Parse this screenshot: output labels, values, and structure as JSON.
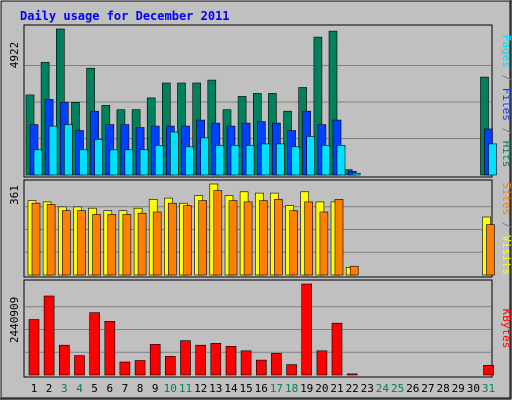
{
  "chart_data": {
    "type": "bar",
    "title": "Daily usage for December 2011",
    "colors": {
      "hits": "#00805c",
      "files": "#0040ff",
      "pages": "#00e0ff",
      "visits": "#ffff00",
      "sites": "#ff8000",
      "kbytes": "#ff0000",
      "title": "#0000ff",
      "background": "#c0c0c0",
      "frame": "#808080",
      "weekend_label": "#00805c",
      "day_label": "#000000"
    },
    "categories": [
      "1",
      "2",
      "3",
      "4",
      "5",
      "6",
      "7",
      "8",
      "9",
      "10",
      "11",
      "12",
      "13",
      "14",
      "15",
      "16",
      "17",
      "18",
      "19",
      "20",
      "21",
      "22",
      "23",
      "24",
      "25",
      "26",
      "27",
      "28",
      "29",
      "30",
      "31"
    ],
    "weekend_days": [
      "3",
      "4",
      "10",
      "11",
      "17",
      "18",
      "24",
      "25",
      "31"
    ],
    "panels": [
      {
        "id": "hits-files-pages",
        "max_label": "4922",
        "ylim": [
          0,
          4922
        ],
        "legend": [
          {
            "text": "Pages",
            "color_key": "pages"
          },
          {
            "text": " / ",
            "color_key": "frame"
          },
          {
            "text": "Files",
            "color_key": "files"
          },
          {
            "text": " / ",
            "color_key": "frame"
          },
          {
            "text": "Hits",
            "color_key": "hits"
          }
        ],
        "series": [
          {
            "name": "Hits",
            "color_key": "hits",
            "values": [
              2700,
              3800,
              4922,
              2450,
              3600,
              2350,
              2200,
              2200,
              2600,
              3100,
              3100,
              3100,
              3200,
              2200,
              2650,
              2750,
              2750,
              2150,
              2950,
              4650,
              4850,
              180,
              0,
              0,
              0,
              0,
              0,
              0,
              0,
              0,
              3300
            ]
          },
          {
            "name": "Files",
            "color_key": "files",
            "values": [
              1700,
              2550,
              2450,
              1500,
              2150,
              1700,
              1700,
              1600,
              1650,
              1650,
              1650,
              1850,
              1750,
              1650,
              1750,
              1800,
              1750,
              1500,
              2150,
              1700,
              1850,
              120,
              0,
              0,
              0,
              0,
              0,
              0,
              0,
              0,
              1550
            ]
          },
          {
            "name": "Pages",
            "color_key": "pages",
            "values": [
              850,
              1650,
              1700,
              850,
              1200,
              850,
              850,
              850,
              1000,
              1450,
              950,
              1250,
              1000,
              1000,
              1000,
              1050,
              1050,
              950,
              1300,
              1000,
              1000,
              60,
              0,
              0,
              0,
              0,
              0,
              0,
              0,
              0,
              1050
            ]
          }
        ]
      },
      {
        "id": "visits-sites",
        "max_label": "361",
        "ylim": [
          0,
          361
        ],
        "legend": [
          {
            "text": "Sites",
            "color_key": "sites"
          },
          {
            "text": " / ",
            "color_key": "frame"
          },
          {
            "text": "Visits",
            "color_key": "visits"
          }
        ],
        "series": [
          {
            "name": "Visits",
            "color_key": "visits",
            "values": [
              295,
              290,
              270,
              270,
              265,
              255,
              255,
              265,
              300,
              305,
              285,
              315,
              361,
              315,
              330,
              325,
              325,
              275,
              330,
              290,
              290,
              30,
              0,
              0,
              0,
              0,
              0,
              0,
              0,
              0,
              230
            ]
          },
          {
            "name": "Sites",
            "color_key": "sites",
            "values": [
              285,
              280,
              255,
              255,
              240,
              240,
              240,
              245,
              250,
              285,
              275,
              295,
              335,
              295,
              290,
              295,
              300,
              255,
              290,
              250,
              300,
              35,
              0,
              0,
              0,
              0,
              0,
              0,
              0,
              0,
              200
            ]
          }
        ]
      },
      {
        "id": "kbytes",
        "max_label": "2440909",
        "ylim": [
          0,
          2440909
        ],
        "legend": [
          {
            "text": "KBytes",
            "color_key": "kbytes"
          }
        ],
        "series": [
          {
            "name": "KBytes",
            "color_key": "kbytes",
            "values": [
              1490000,
              2120000,
              800000,
              520000,
              1670000,
              1440000,
              350000,
              390000,
              820000,
              500000,
              920000,
              800000,
              850000,
              770000,
              650000,
              400000,
              580000,
              280000,
              2440909,
              650000,
              1390000,
              30000,
              0,
              0,
              0,
              0,
              0,
              0,
              0,
              0,
              260000
            ]
          }
        ]
      }
    ]
  }
}
